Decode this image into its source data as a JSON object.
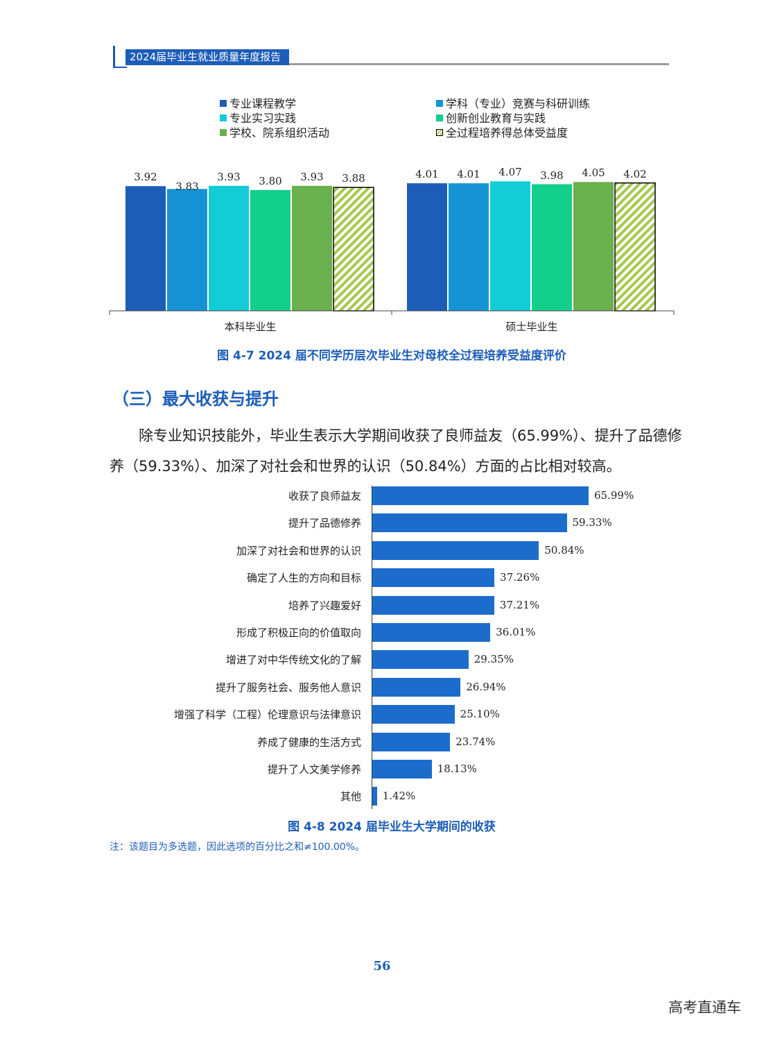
{
  "header": {
    "title": "2024届毕业生就业质量年度报告"
  },
  "colors": {
    "series": [
      "#1c5db8",
      "#1593d4",
      "#12ccd6",
      "#13cf8c",
      "#6ab04c"
    ],
    "hatch_a": "#a6c84c",
    "hatch_b": "#ffffff",
    "accent": "#1c5db8",
    "hbar": "#1c6ccc"
  },
  "figure1": {
    "legend": [
      "专业课程教学",
      "学科（专业）竞赛与科研训练",
      "专业实习实践",
      "创新创业教育与实践",
      "学校、院系组织活动",
      "全过程培养得总体受益度"
    ],
    "caption": "图 4-7   2024 届不同学历层次毕业生对母校全过程培养受益度评价",
    "chart_data": {
      "type": "bar",
      "categories": [
        "本科毕业生",
        "硕士毕业生"
      ],
      "series": [
        {
          "name": "专业课程教学",
          "values": [
            3.92,
            4.01
          ],
          "labels": [
            "3.92",
            "4.01"
          ]
        },
        {
          "name": "学科（专业）竞赛与科研训练",
          "values": [
            3.83,
            4.01
          ],
          "labels": [
            "3.83",
            "4.01"
          ]
        },
        {
          "name": "专业实习实践",
          "values": [
            3.93,
            4.07
          ],
          "labels": [
            "3.93",
            "4.07"
          ]
        },
        {
          "name": "创新创业教育与实践",
          "values": [
            3.8,
            3.98
          ],
          "labels": [
            "3.80",
            "3.98"
          ]
        },
        {
          "name": "学校、院系组织活动",
          "values": [
            3.93,
            4.05
          ],
          "labels": [
            "3.93",
            "4.05"
          ]
        },
        {
          "name": "全过程培养得总体受益度",
          "values": [
            3.88,
            4.02
          ],
          "labels": [
            "3.88",
            "4.02"
          ]
        }
      ],
      "ylim": [
        0,
        4.5
      ]
    }
  },
  "section": {
    "title": "（三）最大收获与提升",
    "paragraph": "　　除专业知识技能外，毕业生表示大学期间收获了良师益友（65.99%）、提升了品德修养（59.33%）、加深了对社会和世界的认识（50.84%）方面的占比相对较高。"
  },
  "figure2": {
    "caption": "图 4-8  2024 届毕业生大学期间的收获",
    "chart_data": {
      "type": "bar",
      "orientation": "horizontal",
      "categories": [
        "收获了良师益友",
        "提升了品德修养",
        "加深了对社会和世界的认识",
        "确定了人生的方向和目标",
        "培养了兴趣爱好",
        "形成了积极正向的价值取向",
        "增进了对中华传统文化的了解",
        "提升了服务社会、服务他人意识",
        "增强了科学（工程）伦理意识与法律意识",
        "养成了健康的生活方式",
        "提升了人文美学修养",
        "其他"
      ],
      "values": [
        65.99,
        59.33,
        50.84,
        37.26,
        37.21,
        36.01,
        29.35,
        26.94,
        25.1,
        23.74,
        18.13,
        1.42
      ],
      "labels": [
        "65.99%",
        "59.33%",
        "50.84%",
        "37.26%",
        "37.21%",
        "36.01%",
        "29.35%",
        "26.94%",
        "25.10%",
        "23.74%",
        "18.13%",
        "1.42%"
      ],
      "unit": "%"
    }
  },
  "note": "注：该题目为多选题，因此选项的百分比之和≠100.00%。",
  "page_number": "56",
  "watermark": "高考直通车"
}
